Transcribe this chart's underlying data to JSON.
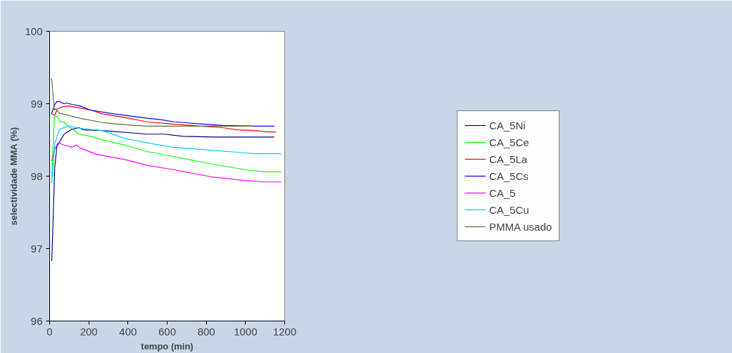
{
  "chart_data": {
    "type": "line",
    "xlabel": "tempo (min)",
    "ylabel": "selectividade MMA (%)",
    "xlim": [
      0,
      1200
    ],
    "xticks": [
      0,
      200,
      400,
      600,
      800,
      1000,
      1200
    ],
    "ylim": [
      96,
      100
    ],
    "yticks": [
      96,
      97,
      98,
      99,
      100
    ],
    "grid": false,
    "legend": "right",
    "marker": "none",
    "line_style": "solid",
    "series": [
      {
        "name": "CA_5Ni",
        "color": "#000080",
        "x": [
          11,
          26,
          37,
          74,
          115,
          149,
          172,
          269,
          498,
          584,
          682,
          837,
          1147
        ],
        "values": [
          96.83,
          98.11,
          98.41,
          98.58,
          98.65,
          98.67,
          98.64,
          98.63,
          98.58,
          98.58,
          98.55,
          98.54,
          98.54
        ]
      },
      {
        "name": "CA_5Ce",
        "color": "#00ff00",
        "x": [
          11,
          24,
          37,
          52,
          74,
          115,
          149,
          212,
          269,
          384,
          498,
          653,
          825,
          997,
          1095,
          1183
        ],
        "values": [
          97.98,
          98.82,
          98.83,
          98.76,
          98.74,
          98.65,
          98.58,
          98.55,
          98.5,
          98.43,
          98.34,
          98.26,
          98.17,
          98.09,
          98.06,
          98.06
        ]
      },
      {
        "name": "CA_5La",
        "color": "#ff0000",
        "x": [
          10,
          26,
          40,
          69,
          97,
          155,
          212,
          269,
          384,
          498,
          624,
          768,
          882,
          957,
          1043,
          1112,
          1157
        ],
        "values": [
          98.86,
          98.84,
          98.93,
          98.96,
          98.97,
          98.94,
          98.91,
          98.86,
          98.81,
          98.75,
          98.72,
          98.69,
          98.67,
          98.64,
          98.63,
          98.61,
          98.61
        ]
      },
      {
        "name": "CA_5Cs",
        "color": "#0000ff",
        "x": [
          10,
          26,
          37,
          50,
          74,
          86,
          115,
          155,
          212,
          327,
          498,
          567,
          636,
          779,
          882,
          1043,
          1147
        ],
        "values": [
          98.86,
          98.99,
          99.03,
          99.03,
          99.0,
          99.01,
          98.99,
          98.97,
          98.91,
          98.86,
          98.8,
          98.78,
          98.75,
          98.72,
          98.7,
          98.69,
          98.69
        ]
      },
      {
        "name": "CA_5",
        "color": "#ff00ff",
        "x": [
          11,
          26,
          43,
          74,
          115,
          138,
          155,
          241,
          384,
          498,
          653,
          825,
          997,
          1095,
          1183
        ],
        "values": [
          98.21,
          98.37,
          98.46,
          98.43,
          98.4,
          98.43,
          98.39,
          98.3,
          98.23,
          98.15,
          98.08,
          97.99,
          97.94,
          97.92,
          97.92
        ]
      },
      {
        "name": "CA_5Cu",
        "color": "#00ccff",
        "x": [
          11,
          26,
          52,
          97,
          155,
          269,
          384,
          498,
          624,
          768,
          957,
          1054,
          1183
        ],
        "values": [
          97.91,
          98.45,
          98.65,
          98.69,
          98.66,
          98.63,
          98.52,
          98.46,
          98.4,
          98.37,
          98.33,
          98.31,
          98.31
        ]
      },
      {
        "name": "PMMA usado",
        "color": "#666633",
        "x": [
          10,
          24,
          30,
          50,
          97,
          155,
          269,
          384,
          498,
          1040
        ],
        "values": [
          99.35,
          98.91,
          98.93,
          98.87,
          98.84,
          98.8,
          98.74,
          98.71,
          98.69,
          98.69
        ]
      }
    ]
  }
}
